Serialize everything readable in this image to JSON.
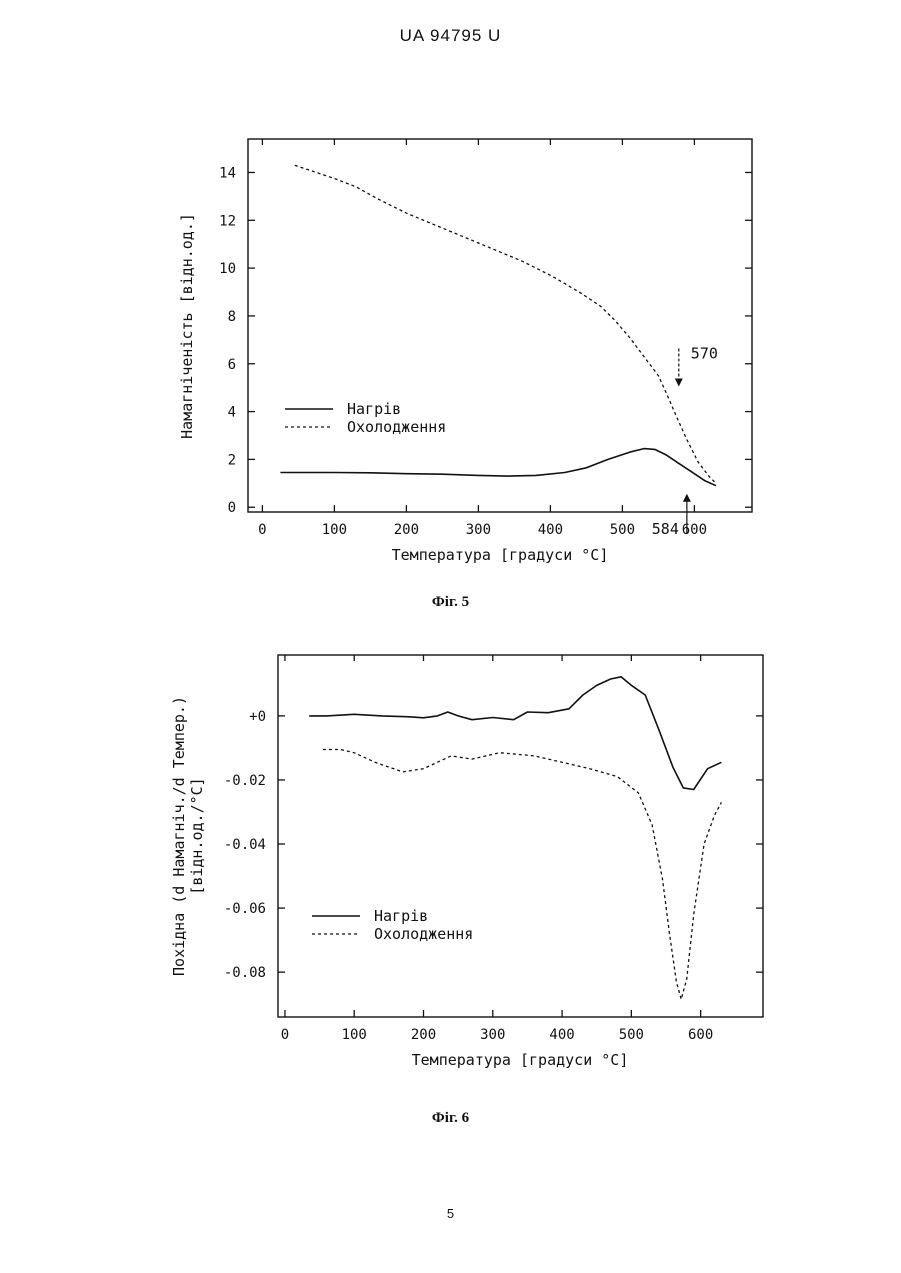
{
  "header": {
    "doc_id": "UA   94795   U"
  },
  "page_number": "5",
  "chart_data": [
    {
      "type": "line",
      "caption": "Фіг. 5",
      "xlabel": "Температура [градуси °C]",
      "ylabel": "Намагніченість [відн.од.]",
      "xlim": [
        -20,
        680
      ],
      "ylim": [
        -0.2,
        15.4
      ],
      "xticks": [
        0,
        100,
        200,
        300,
        400,
        500,
        600
      ],
      "xtick_labels": [
        "0",
        "100",
        "200",
        "300",
        "400",
        "500",
        "600"
      ],
      "yticks": [
        0,
        2,
        4,
        6,
        8,
        10,
        12,
        14
      ],
      "ytick_labels": [
        "0",
        "2",
        "4",
        "6",
        "8",
        "10",
        "12",
        "14"
      ],
      "legend_position": "middle-left",
      "series": [
        {
          "name": "Нагрів",
          "style": "solid",
          "x": [
            25,
            50,
            100,
            150,
            200,
            250,
            300,
            340,
            380,
            420,
            450,
            480,
            510,
            530,
            545,
            560,
            580,
            600,
            615,
            630
          ],
          "y": [
            1.45,
            1.45,
            1.45,
            1.44,
            1.4,
            1.38,
            1.33,
            1.3,
            1.33,
            1.45,
            1.65,
            2.0,
            2.3,
            2.45,
            2.42,
            2.2,
            1.8,
            1.4,
            1.1,
            0.9
          ]
        },
        {
          "name": "Охолодження",
          "style": "dotted",
          "x": [
            45,
            70,
            100,
            130,
            160,
            200,
            240,
            280,
            320,
            360,
            400,
            440,
            470,
            490,
            510,
            530,
            550,
            565,
            575,
            590,
            605,
            620,
            630
          ],
          "y": [
            14.3,
            14.05,
            13.75,
            13.4,
            12.9,
            12.3,
            11.8,
            11.3,
            10.8,
            10.3,
            9.7,
            9.0,
            8.4,
            7.8,
            7.1,
            6.3,
            5.5,
            4.5,
            3.8,
            2.8,
            1.9,
            1.3,
            1.0
          ]
        }
      ],
      "annotations": [
        {
          "text": "570",
          "x": 570,
          "y": 5.3
        },
        {
          "text": "584",
          "x": 584,
          "y": 0.6
        }
      ]
    },
    {
      "type": "line",
      "caption": "Фіг. 6",
      "xlabel": "Температура [градуси °C]",
      "ylabel_line1": "Похідна (d Намагніч./d Темпер.)",
      "ylabel_line2": "[відн.од./°C]",
      "xlim": [
        -10,
        690
      ],
      "ylim": [
        -0.094,
        0.019
      ],
      "xticks": [
        0,
        100,
        200,
        300,
        400,
        500,
        600
      ],
      "xtick_labels": [
        "0",
        "100",
        "200",
        "300",
        "400",
        "500",
        "600"
      ],
      "yticks": [
        0,
        -0.02,
        -0.04,
        -0.06,
        -0.08
      ],
      "ytick_labels": [
        "+0",
        "-0.02",
        "-0.04",
        "-0.06",
        "-0.08"
      ],
      "legend_position": "bottom-left",
      "series": [
        {
          "name": "Нагрів",
          "style": "solid",
          "x": [
            35,
            60,
            100,
            140,
            180,
            200,
            220,
            235,
            250,
            270,
            300,
            330,
            350,
            380,
            410,
            430,
            450,
            470,
            485,
            500,
            520,
            540,
            560,
            575,
            590,
            610,
            630
          ],
          "y": [
            0.0,
            0.0,
            0.0005,
            0.0,
            -0.0003,
            -0.0006,
            0.0,
            0.0012,
            0.0,
            -0.0012,
            -0.0005,
            -0.0012,
            0.0012,
            0.001,
            0.0022,
            0.0065,
            0.0095,
            0.0115,
            0.0122,
            0.0095,
            0.0065,
            -0.0045,
            -0.016,
            -0.0225,
            -0.023,
            -0.0165,
            -0.0145
          ]
        },
        {
          "name": "Охолодження",
          "style": "dotted",
          "x": [
            55,
            80,
            100,
            130,
            170,
            200,
            240,
            270,
            310,
            360,
            400,
            440,
            480,
            510,
            530,
            545,
            555,
            565,
            572,
            580,
            590,
            605,
            620,
            630
          ],
          "y": [
            -0.0105,
            -0.0105,
            -0.0115,
            -0.0145,
            -0.0175,
            -0.0165,
            -0.0125,
            -0.0135,
            -0.0115,
            -0.0125,
            -0.0145,
            -0.0165,
            -0.019,
            -0.024,
            -0.034,
            -0.051,
            -0.068,
            -0.083,
            -0.0885,
            -0.082,
            -0.062,
            -0.04,
            -0.031,
            -0.027
          ]
        }
      ]
    }
  ]
}
